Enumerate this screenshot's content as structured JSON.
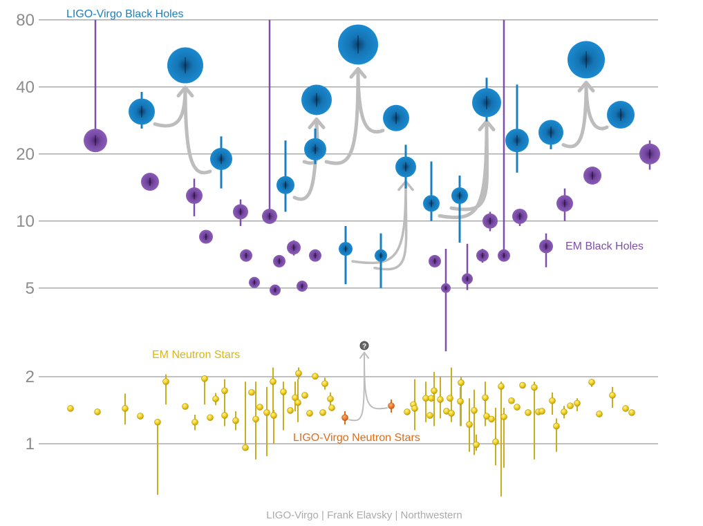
{
  "chart_data": {
    "type": "scatter",
    "title": "",
    "y_scale": "log",
    "ylim": [
      0.6,
      85
    ],
    "y_ticks": [
      {
        "value": 80,
        "label": "80"
      },
      {
        "value": 40,
        "label": "40"
      },
      {
        "value": 20,
        "label": "20"
      },
      {
        "value": 10,
        "label": "10"
      },
      {
        "value": 5,
        "label": "5"
      },
      {
        "value": 2,
        "label": "2"
      },
      {
        "value": 1,
        "label": "1"
      }
    ],
    "grid": true,
    "series": [
      {
        "name": "LIGO-Virgo Black Holes",
        "color": "#1a7fc1",
        "points": [
          {
            "x": 1,
            "y": 31.0,
            "lo": 26.0,
            "hi": 38.0
          },
          {
            "x": 2,
            "y": 50.0
          },
          {
            "x": 3,
            "y": 19.0,
            "lo": 14.0,
            "hi": 24.0
          },
          {
            "x": 4,
            "y": 14.5,
            "lo": 11.0,
            "hi": 23.0
          },
          {
            "x": 5,
            "y": 35.0
          },
          {
            "x": 6,
            "y": 21.0,
            "lo": 18.0,
            "hi": 26.0
          },
          {
            "x": 7,
            "y": 62.0
          },
          {
            "x": 8,
            "y": 7.5,
            "lo": 5.2,
            "hi": 9.5
          },
          {
            "x": 9,
            "y": 7.0,
            "lo": 5.0,
            "hi": 8.8
          },
          {
            "x": 10,
            "y": 29.0
          },
          {
            "x": 11,
            "y": 17.5,
            "lo": 14.0,
            "hi": 22.0
          },
          {
            "x": 12,
            "y": 12.0,
            "lo": 10.0,
            "hi": 18.5
          },
          {
            "x": 13,
            "y": 13.0,
            "lo": 8.0,
            "hi": 16.0
          },
          {
            "x": 14,
            "y": 34.0,
            "lo": 28.0,
            "hi": 44.0
          },
          {
            "x": 15,
            "y": 23.0,
            "lo": 16.5,
            "hi": 41.0
          },
          {
            "x": 16,
            "y": 25.0,
            "lo": 21.0,
            "hi": 27.0
          },
          {
            "x": 17,
            "y": 53.0
          },
          {
            "x": 18,
            "y": 30.0,
            "lo": 27.0,
            "hi": 34.0
          }
        ]
      },
      {
        "name": "EM Black Holes",
        "color": "#7e4fa8",
        "points": [
          {
            "x": 1,
            "y": 23.0,
            "hi": 80.0
          },
          {
            "x": 2,
            "y": 15.0
          },
          {
            "x": 3,
            "y": 13.0,
            "lo": 10.5,
            "hi": 15.5
          },
          {
            "x": 4,
            "y": 8.5
          },
          {
            "x": 5,
            "y": 11.0,
            "lo": 9.5,
            "hi": 12.5
          },
          {
            "x": 6,
            "y": 7.0
          },
          {
            "x": 7,
            "y": 5.3
          },
          {
            "x": 8,
            "y": 10.5,
            "hi": 80.0
          },
          {
            "x": 9,
            "y": 4.9
          },
          {
            "x": 10,
            "y": 6.6
          },
          {
            "x": 11,
            "y": 7.6,
            "lo": 7.0,
            "hi": 8.2
          },
          {
            "x": 12,
            "y": 5.1
          },
          {
            "x": 13,
            "y": 7.0,
            "lo": 6.6,
            "hi": 7.4
          },
          {
            "x": 14,
            "y": 6.6
          },
          {
            "x": 15,
            "y": 5.0,
            "lo": 2.6,
            "hi": 7.5
          },
          {
            "x": 16,
            "y": 5.5,
            "lo": 4.9,
            "hi": 7.9
          },
          {
            "x": 17,
            "y": 7.0,
            "lo": 6.5,
            "hi": 7.5
          },
          {
            "x": 18,
            "y": 10.0,
            "lo": 9.0,
            "hi": 11.0
          },
          {
            "x": 19,
            "y": 7.0,
            "hi": 80.0
          },
          {
            "x": 20,
            "y": 10.5,
            "lo": 9.5,
            "hi": 11.0
          },
          {
            "x": 21,
            "y": 7.7,
            "lo": 6.2,
            "hi": 8.8
          },
          {
            "x": 22,
            "y": 12.0,
            "lo": 10.0,
            "hi": 14.0
          },
          {
            "x": 23,
            "y": 16.0
          },
          {
            "x": 24,
            "y": 20.0,
            "lo": 17.0,
            "hi": 23.0
          }
        ]
      },
      {
        "name": "EM Neutron Stars",
        "color": "#e2c21e",
        "points": [
          {
            "y": 1.44
          },
          {
            "y": 1.39
          },
          {
            "y": 1.44,
            "lo": 1.22,
            "hi": 1.68
          },
          {
            "y": 1.33
          },
          {
            "y": 1.25,
            "lo": 0.59,
            "hi": 1.28
          },
          {
            "y": 1.9,
            "lo": 1.5,
            "hi": 2.05
          },
          {
            "y": 1.47
          },
          {
            "y": 1.25,
            "lo": 1.15,
            "hi": 1.35
          },
          {
            "y": 1.96,
            "lo": 1.5,
            "hi": 2.0
          },
          {
            "y": 1.31
          },
          {
            "y": 1.59,
            "lo": 1.49,
            "hi": 1.69
          },
          {
            "y": 1.73,
            "lo": 1.4,
            "hi": 1.95
          },
          {
            "y": 1.34,
            "lo": 1.2,
            "hi": 1.45
          },
          {
            "y": 1.27,
            "lo": 1.15,
            "hi": 1.4
          },
          {
            "y": 0.96,
            "lo": 0.96,
            "hi": 1.9
          },
          {
            "y": 1.7
          },
          {
            "y": 1.29,
            "lo": 0.85,
            "hi": 1.9
          },
          {
            "y": 1.46
          },
          {
            "y": 1.38,
            "lo": 0.88,
            "hi": 1.8
          },
          {
            "y": 1.34,
            "lo": 1.0,
            "hi": 1.42
          },
          {
            "y": 1.9,
            "lo": 1.35,
            "hi": 2.2
          },
          {
            "y": 1.71,
            "lo": 1.15,
            "hi": 1.9
          },
          {
            "y": 1.41
          },
          {
            "y": 1.61,
            "lo": 1.4,
            "hi": 1.9
          },
          {
            "y": 1.53,
            "lo": 1.25,
            "hi": 1.95
          },
          {
            "y": 2.07,
            "lo": 1.95,
            "hi": 2.2
          },
          {
            "y": 1.65
          },
          {
            "y": 1.37
          },
          {
            "y": 2.01
          },
          {
            "y": 1.38
          },
          {
            "y": 1.86,
            "lo": 1.75,
            "hi": 1.98
          },
          {
            "y": 1.59,
            "lo": 1.45,
            "hi": 1.7
          },
          {
            "y": 1.45
          },
          {
            "y": 1.39
          },
          {
            "y": 1.5
          },
          {
            "y": 1.44,
            "lo": 1.15,
            "hi": 1.95
          },
          {
            "y": 1.6,
            "lo": 1.25,
            "hi": 1.9
          },
          {
            "y": 1.34
          },
          {
            "y": 1.6
          },
          {
            "y": 1.73,
            "lo": 1.2,
            "hi": 2.1
          },
          {
            "y": 1.58,
            "lo": 1.3,
            "hi": 2.0
          },
          {
            "y": 1.4
          },
          {
            "y": 1.6
          },
          {
            "y": 1.37,
            "lo": 1.25,
            "hi": 2.2
          },
          {
            "y": 1.88,
            "lo": 1.2,
            "hi": 2.0
          },
          {
            "y": 1.55,
            "lo": 1.2,
            "hi": 1.8
          },
          {
            "y": 1.22,
            "lo": 0.92,
            "hi": 1.6
          },
          {
            "y": 1.41,
            "lo": 0.89,
            "hi": 1.75
          },
          {
            "y": 0.99,
            "lo": 0.93,
            "hi": 1.1
          },
          {
            "y": 1.33
          },
          {
            "y": 1.61,
            "lo": 1.2,
            "hi": 1.9
          },
          {
            "y": 1.29
          },
          {
            "y": 1.02,
            "lo": 0.8,
            "hi": 1.45
          },
          {
            "y": 1.81,
            "lo": 0.58,
            "hi": 1.9
          },
          {
            "y": 1.32,
            "lo": 0.78,
            "hi": 1.45
          },
          {
            "y": 1.56
          },
          {
            "y": 1.46
          },
          {
            "y": 1.83
          },
          {
            "y": 1.38
          },
          {
            "y": 1.79,
            "lo": 0.85,
            "hi": 1.9
          },
          {
            "y": 1.39
          },
          {
            "y": 1.4
          },
          {
            "y": 1.56,
            "lo": 1.35,
            "hi": 1.7
          },
          {
            "y": 1.2,
            "lo": 0.92,
            "hi": 1.3
          },
          {
            "y": 1.39,
            "lo": 1.3,
            "hi": 1.48
          },
          {
            "y": 1.48
          },
          {
            "y": 1.52,
            "lo": 1.4,
            "hi": 1.6
          },
          {
            "y": 1.89,
            "lo": 1.8,
            "hi": 1.95
          },
          {
            "y": 1.36
          },
          {
            "y": 1.65,
            "lo": 1.45,
            "hi": 1.8
          },
          {
            "y": 1.44
          },
          {
            "y": 1.38
          }
        ]
      },
      {
        "name": "LIGO-Virgo Neutron Stars",
        "color": "#e06c1a",
        "points": [
          {
            "x": 1,
            "y": 1.31,
            "lo": 1.22,
            "hi": 1.4
          },
          {
            "x": 2,
            "y": 1.48,
            "lo": 1.38,
            "hi": 1.58
          }
        ]
      }
    ],
    "mergers": [
      {
        "from": [
          1,
          3
        ],
        "to": 2
      },
      {
        "from": [
          4,
          6
        ],
        "to": 5
      },
      {
        "from": [
          6,
          10
        ],
        "to": 7
      },
      {
        "from": [
          8,
          9
        ],
        "to": 11
      },
      {
        "from": [
          12,
          13
        ],
        "to": 14
      },
      {
        "from": [
          16,
          18
        ],
        "to": 17
      }
    ],
    "annotations": [
      "?"
    ],
    "credit": "LIGO-Virgo | Frank Elavsky | Northwestern"
  }
}
